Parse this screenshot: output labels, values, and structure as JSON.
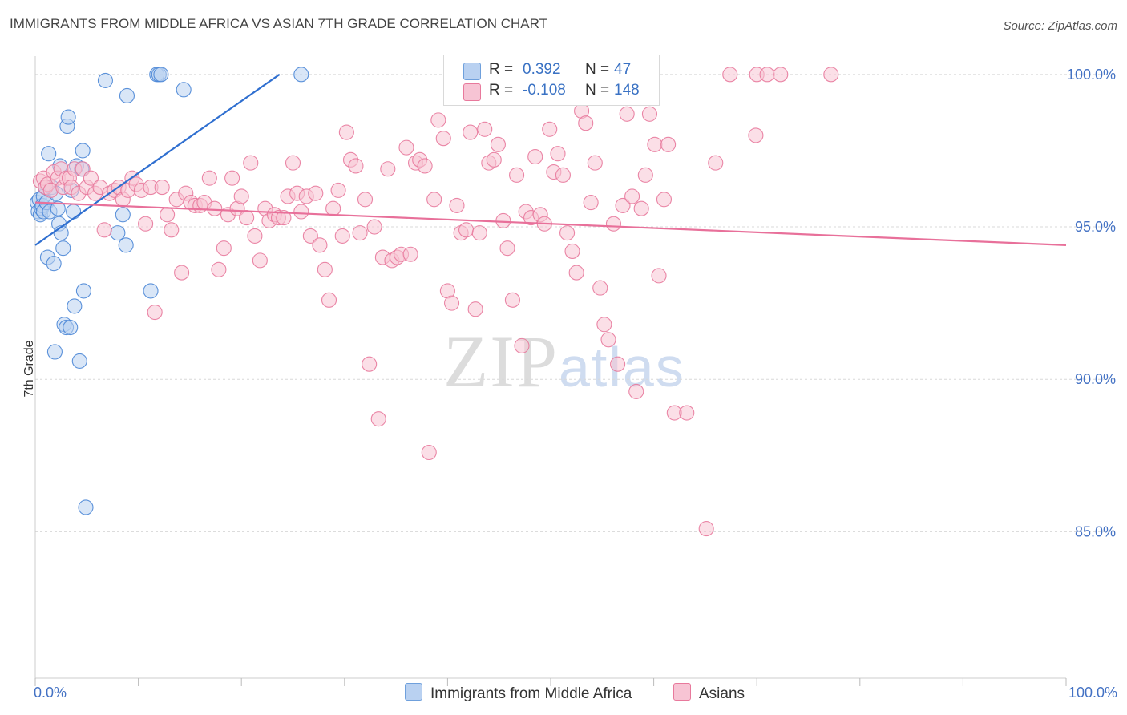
{
  "title": "IMMIGRANTS FROM MIDDLE AFRICA VS ASIAN 7TH GRADE CORRELATION CHART",
  "source": "Source: ZipAtlas.com",
  "watermark": {
    "zip": "ZIP",
    "atlas": "atlas"
  },
  "legend": {
    "r_label": "R =",
    "n_label": "N =",
    "rows": [
      {
        "name": "Immigrants from Middle Africa",
        "r": "0.392",
        "n": "47",
        "color": "#6fa0dc",
        "fill": "#b9d1f1"
      },
      {
        "name": "Asians",
        "r": "-0.108",
        "n": "148",
        "color": "#e8799c",
        "fill": "#f7c4d4"
      }
    ]
  },
  "chart_data": {
    "type": "scatter",
    "title": "IMMIGRANTS FROM MIDDLE AFRICA VS ASIAN 7TH GRADE CORRELATION CHART",
    "xlabel": "",
    "ylabel": "7th Grade",
    "xlim": [
      0,
      100
    ],
    "ylim": [
      80.2,
      100.6
    ],
    "x_ticks": [
      0,
      10,
      20,
      30,
      40,
      50,
      60,
      70,
      80,
      90,
      100
    ],
    "x_tick_labels": [
      {
        "value": 0,
        "label": "0.0%"
      },
      {
        "value": 100,
        "label": "100.0%"
      }
    ],
    "y_tick_labels": [
      {
        "value": 100,
        "label": "100.0%"
      },
      {
        "value": 95,
        "label": "95.0%"
      },
      {
        "value": 90,
        "label": "90.0%"
      },
      {
        "value": 85,
        "label": "85.0%"
      }
    ],
    "grid": true,
    "series": [
      {
        "name": "Immigrants from Middle Africa",
        "color": "#4a86d6",
        "fill": "#b9d1f1",
        "trend": {
          "x": [
            0,
            23.7
          ],
          "y": [
            94.4,
            100.0
          ]
        },
        "points": [
          [
            0.2,
            95.8
          ],
          [
            0.3,
            95.5
          ],
          [
            0.4,
            95.9
          ],
          [
            0.5,
            95.4
          ],
          [
            0.6,
            95.6
          ],
          [
            0.7,
            95.7
          ],
          [
            0.8,
            96.0
          ],
          [
            0.8,
            95.5
          ],
          [
            1.0,
            96.3
          ],
          [
            1.1,
            95.8
          ],
          [
            1.2,
            94.0
          ],
          [
            1.3,
            97.4
          ],
          [
            1.4,
            95.5
          ],
          [
            1.6,
            96.3
          ],
          [
            1.8,
            93.8
          ],
          [
            1.9,
            90.9
          ],
          [
            2.0,
            96.1
          ],
          [
            2.2,
            95.6
          ],
          [
            2.3,
            95.1
          ],
          [
            2.4,
            97.0
          ],
          [
            2.5,
            94.8
          ],
          [
            2.7,
            94.3
          ],
          [
            2.8,
            91.8
          ],
          [
            3.0,
            91.7
          ],
          [
            3.1,
            98.3
          ],
          [
            3.2,
            98.6
          ],
          [
            3.4,
            91.7
          ],
          [
            3.5,
            96.2
          ],
          [
            3.7,
            95.5
          ],
          [
            3.8,
            92.4
          ],
          [
            4.0,
            97.0
          ],
          [
            4.3,
            90.6
          ],
          [
            4.5,
            96.9
          ],
          [
            4.6,
            97.5
          ],
          [
            4.7,
            92.9
          ],
          [
            4.9,
            85.8
          ],
          [
            6.8,
            99.8
          ],
          [
            8.0,
            94.8
          ],
          [
            8.5,
            95.4
          ],
          [
            8.8,
            94.4
          ],
          [
            8.9,
            99.3
          ],
          [
            11.2,
            92.9
          ],
          [
            11.8,
            100.0
          ],
          [
            12.0,
            100.0
          ],
          [
            12.2,
            100.0
          ],
          [
            14.4,
            99.5
          ],
          [
            25.8,
            100.0
          ]
        ]
      },
      {
        "name": "Asians",
        "color": "#e8799c",
        "fill": "#f7c4d4",
        "trend": {
          "x": [
            0,
            100
          ],
          "y": [
            95.8,
            94.4
          ]
        },
        "points": [
          [
            0.5,
            96.5
          ],
          [
            0.8,
            96.6
          ],
          [
            1.0,
            96.3
          ],
          [
            1.2,
            96.4
          ],
          [
            1.5,
            96.2
          ],
          [
            1.8,
            96.8
          ],
          [
            2.2,
            96.6
          ],
          [
            2.5,
            96.9
          ],
          [
            2.7,
            96.3
          ],
          [
            3.0,
            96.6
          ],
          [
            3.3,
            96.6
          ],
          [
            3.5,
            96.3
          ],
          [
            3.8,
            96.9
          ],
          [
            4.2,
            96.1
          ],
          [
            4.6,
            96.9
          ],
          [
            5.0,
            96.3
          ],
          [
            5.4,
            96.6
          ],
          [
            5.8,
            96.1
          ],
          [
            6.3,
            96.3
          ],
          [
            6.7,
            94.9
          ],
          [
            7.2,
            96.1
          ],
          [
            7.7,
            96.2
          ],
          [
            8.1,
            96.3
          ],
          [
            8.5,
            95.9
          ],
          [
            9.0,
            96.2
          ],
          [
            9.4,
            96.6
          ],
          [
            9.8,
            96.4
          ],
          [
            10.3,
            96.2
          ],
          [
            10.7,
            95.1
          ],
          [
            11.2,
            96.3
          ],
          [
            11.6,
            92.2
          ],
          [
            12.3,
            96.3
          ],
          [
            12.8,
            95.4
          ],
          [
            13.2,
            94.9
          ],
          [
            13.7,
            95.9
          ],
          [
            14.2,
            93.5
          ],
          [
            14.6,
            96.1
          ],
          [
            15.1,
            95.8
          ],
          [
            15.5,
            95.7
          ],
          [
            16.0,
            95.7
          ],
          [
            16.4,
            95.8
          ],
          [
            16.9,
            96.6
          ],
          [
            17.4,
            95.6
          ],
          [
            17.8,
            93.6
          ],
          [
            18.3,
            94.3
          ],
          [
            18.7,
            95.4
          ],
          [
            19.1,
            96.6
          ],
          [
            19.6,
            95.6
          ],
          [
            20.0,
            96.0
          ],
          [
            20.5,
            95.3
          ],
          [
            20.9,
            97.1
          ],
          [
            21.3,
            94.7
          ],
          [
            21.8,
            93.9
          ],
          [
            22.3,
            95.6
          ],
          [
            22.7,
            95.2
          ],
          [
            23.2,
            95.4
          ],
          [
            23.6,
            95.3
          ],
          [
            24.1,
            95.3
          ],
          [
            24.5,
            96.0
          ],
          [
            25.0,
            97.1
          ],
          [
            25.4,
            96.1
          ],
          [
            25.8,
            95.5
          ],
          [
            26.3,
            96.0
          ],
          [
            26.7,
            94.7
          ],
          [
            27.2,
            96.1
          ],
          [
            27.6,
            94.4
          ],
          [
            28.1,
            93.6
          ],
          [
            28.5,
            92.6
          ],
          [
            28.9,
            95.6
          ],
          [
            29.4,
            96.2
          ],
          [
            29.8,
            94.7
          ],
          [
            30.2,
            98.1
          ],
          [
            30.6,
            97.2
          ],
          [
            31.1,
            97.0
          ],
          [
            31.5,
            94.8
          ],
          [
            32.0,
            95.9
          ],
          [
            32.4,
            90.5
          ],
          [
            32.9,
            95.0
          ],
          [
            33.3,
            88.7
          ],
          [
            33.7,
            94.0
          ],
          [
            34.2,
            96.9
          ],
          [
            34.6,
            93.9
          ],
          [
            35.1,
            94.0
          ],
          [
            35.5,
            94.1
          ],
          [
            36.0,
            97.6
          ],
          [
            36.4,
            94.1
          ],
          [
            36.9,
            97.1
          ],
          [
            37.3,
            97.2
          ],
          [
            37.8,
            97.0
          ],
          [
            38.2,
            87.6
          ],
          [
            38.7,
            95.9
          ],
          [
            39.1,
            98.5
          ],
          [
            39.6,
            97.9
          ],
          [
            40.0,
            92.9
          ],
          [
            40.4,
            92.5
          ],
          [
            40.9,
            95.7
          ],
          [
            41.3,
            94.8
          ],
          [
            41.8,
            94.9
          ],
          [
            42.2,
            98.1
          ],
          [
            42.7,
            92.3
          ],
          [
            43.1,
            94.8
          ],
          [
            43.6,
            98.2
          ],
          [
            44.0,
            97.1
          ],
          [
            44.5,
            97.2
          ],
          [
            44.9,
            97.7
          ],
          [
            45.4,
            95.2
          ],
          [
            45.8,
            94.3
          ],
          [
            46.3,
            92.6
          ],
          [
            46.7,
            96.7
          ],
          [
            47.2,
            91.1
          ],
          [
            47.6,
            95.5
          ],
          [
            48.1,
            95.3
          ],
          [
            48.5,
            97.3
          ],
          [
            49.0,
            95.4
          ],
          [
            49.4,
            95.1
          ],
          [
            49.9,
            98.2
          ],
          [
            50.3,
            96.8
          ],
          [
            50.7,
            97.4
          ],
          [
            51.2,
            96.7
          ],
          [
            51.6,
            94.8
          ],
          [
            52.1,
            94.2
          ],
          [
            52.5,
            93.5
          ],
          [
            53.0,
            98.8
          ],
          [
            53.4,
            98.4
          ],
          [
            53.9,
            95.8
          ],
          [
            54.3,
            97.1
          ],
          [
            54.8,
            93.0
          ],
          [
            55.2,
            91.8
          ],
          [
            55.6,
            91.3
          ],
          [
            56.1,
            95.1
          ],
          [
            56.5,
            90.5
          ],
          [
            57.0,
            95.7
          ],
          [
            57.4,
            98.7
          ],
          [
            57.9,
            96.0
          ],
          [
            58.3,
            89.6
          ],
          [
            58.8,
            95.6
          ],
          [
            59.2,
            96.7
          ],
          [
            59.6,
            98.7
          ],
          [
            60.1,
            97.7
          ],
          [
            60.5,
            93.4
          ],
          [
            61.0,
            95.9
          ],
          [
            61.4,
            97.7
          ],
          [
            62.0,
            88.9
          ],
          [
            63.2,
            88.9
          ],
          [
            65.1,
            85.1
          ],
          [
            66.0,
            97.1
          ],
          [
            67.4,
            100.0
          ],
          [
            70.0,
            100.0
          ],
          [
            71.0,
            100.0
          ],
          [
            72.3,
            100.0
          ],
          [
            77.2,
            100.0
          ],
          [
            69.9,
            98.0
          ]
        ]
      }
    ]
  }
}
